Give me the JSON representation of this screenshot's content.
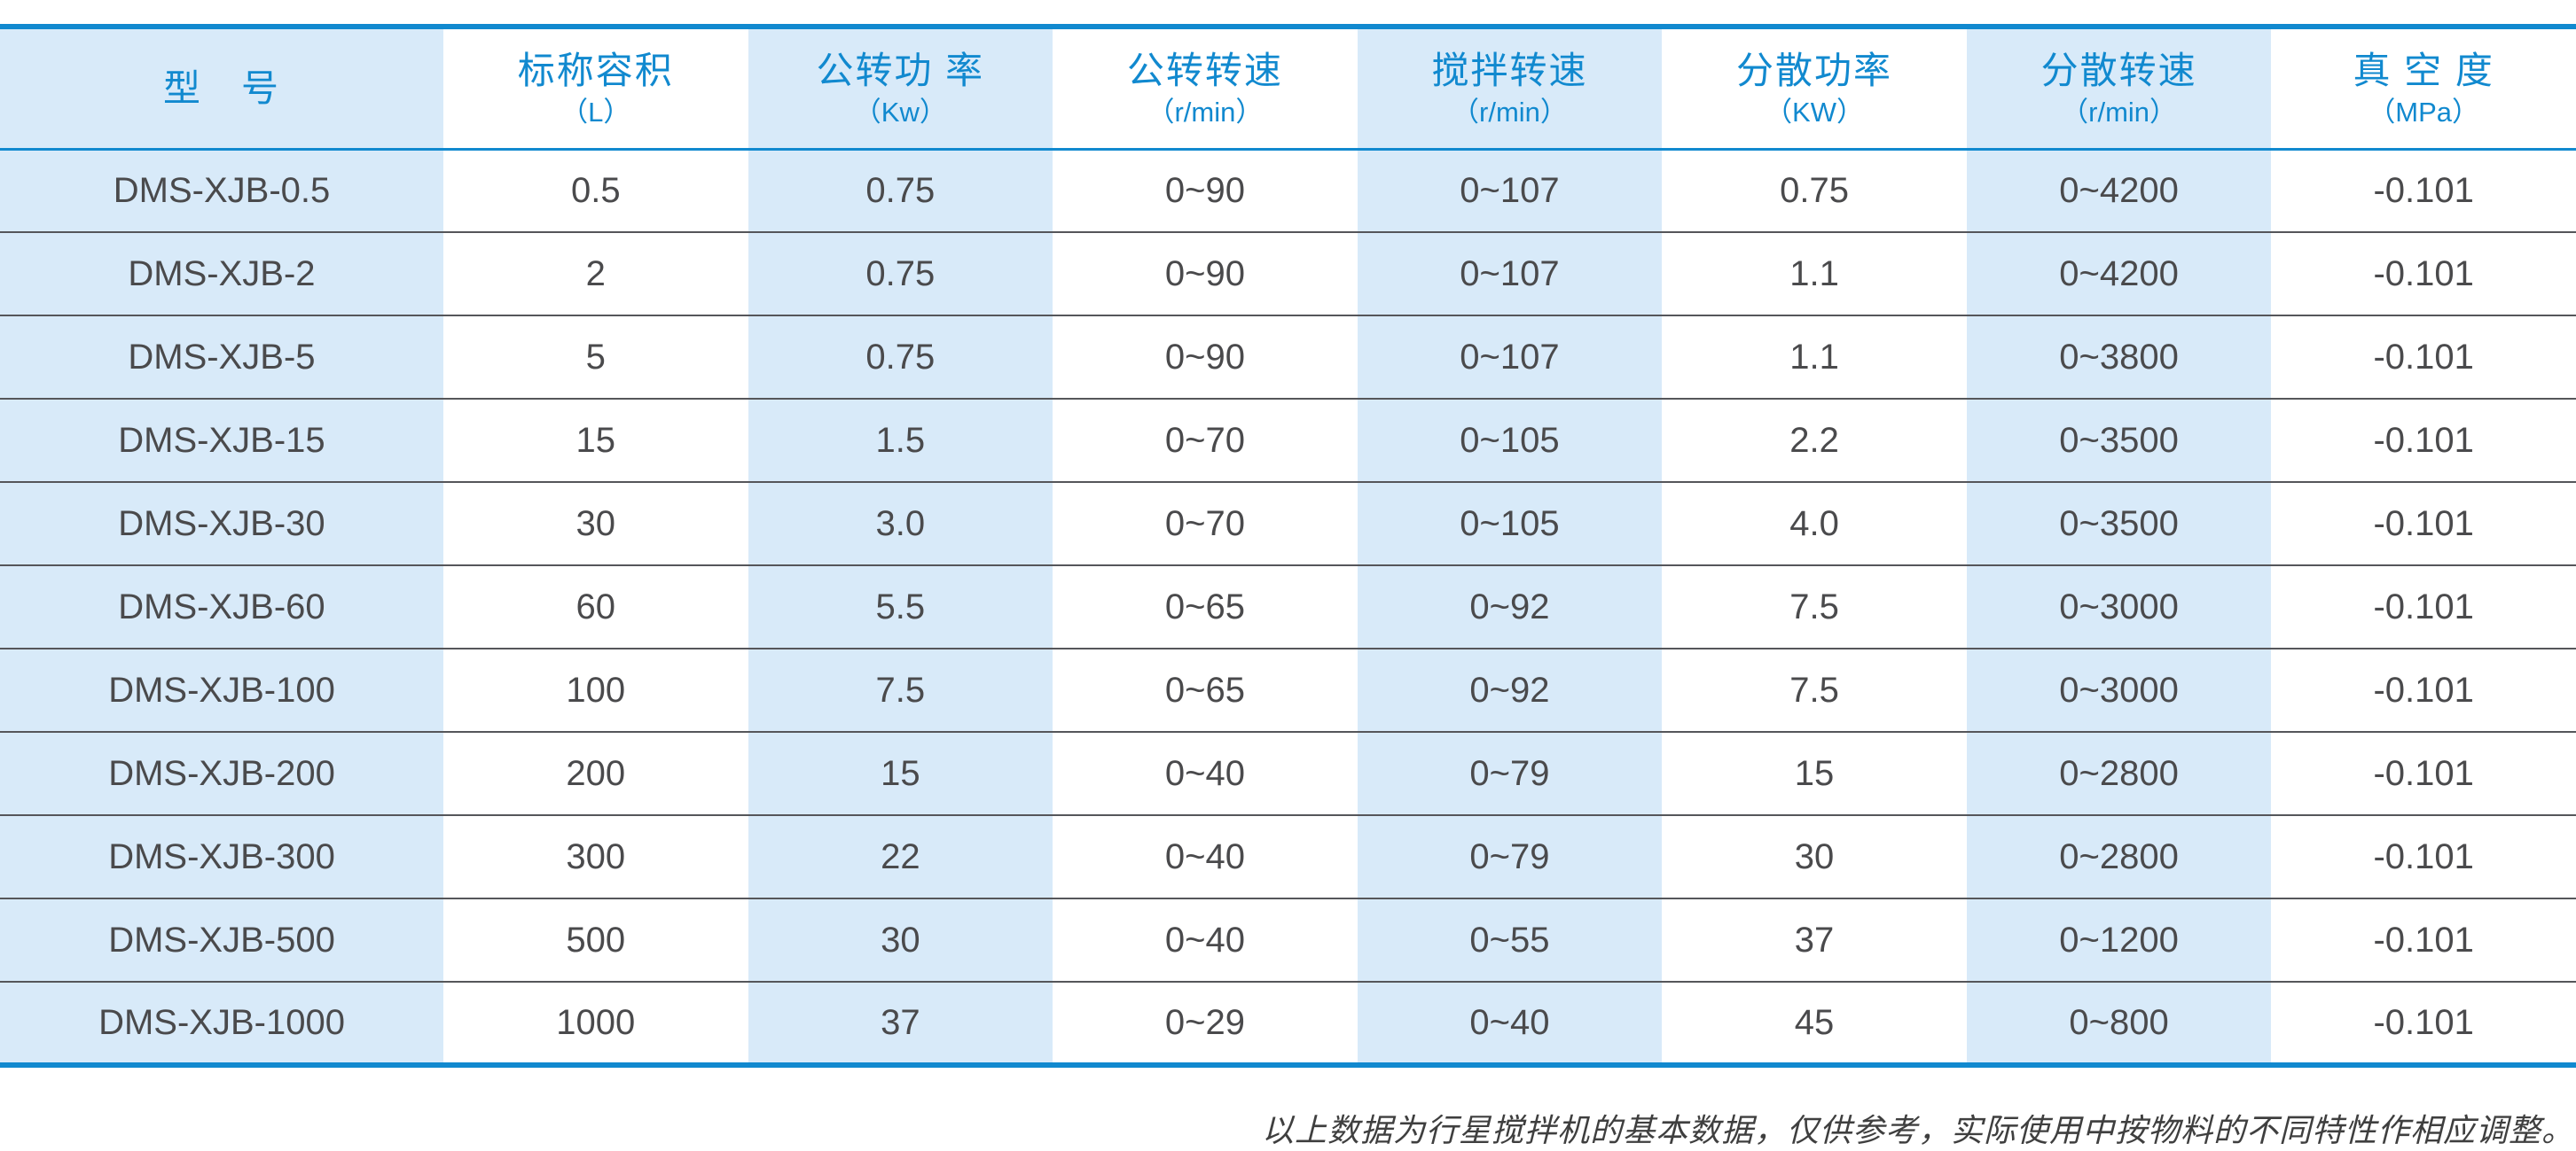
{
  "chart_data": {
    "type": "table",
    "columns": [
      {
        "title": "型　号",
        "unit": ""
      },
      {
        "title": "标称容积",
        "unit": "（L）"
      },
      {
        "title": "公转功 率",
        "unit": "（Kw）"
      },
      {
        "title": "公转转速",
        "unit": "（r/min）"
      },
      {
        "title": "搅拌转速",
        "unit": "（r/min）"
      },
      {
        "title": "分散功率",
        "unit": "（KW）"
      },
      {
        "title": "分散转速",
        "unit": "（r/min）"
      },
      {
        "title": "真 空 度",
        "unit": "（MPa）"
      }
    ],
    "rows": [
      [
        "DMS-XJB-0.5",
        "0.5",
        "0.75",
        "0~90",
        "0~107",
        "0.75",
        "0~4200",
        "-0.101"
      ],
      [
        "DMS-XJB-2",
        "2",
        "0.75",
        "0~90",
        "0~107",
        "1.1",
        "0~4200",
        "-0.101"
      ],
      [
        "DMS-XJB-5",
        "5",
        "0.75",
        "0~90",
        "0~107",
        "1.1",
        "0~3800",
        "-0.101"
      ],
      [
        "DMS-XJB-15",
        "15",
        "1.5",
        "0~70",
        "0~105",
        "2.2",
        "0~3500",
        "-0.101"
      ],
      [
        "DMS-XJB-30",
        "30",
        "3.0",
        "0~70",
        "0~105",
        "4.0",
        "0~3500",
        "-0.101"
      ],
      [
        "DMS-XJB-60",
        "60",
        "5.5",
        "0~65",
        "0~92",
        "7.5",
        "0~3000",
        "-0.101"
      ],
      [
        "DMS-XJB-100",
        "100",
        "7.5",
        "0~65",
        "0~92",
        "7.5",
        "0~3000",
        "-0.101"
      ],
      [
        "DMS-XJB-200",
        "200",
        "15",
        "0~40",
        "0~79",
        "15",
        "0~2800",
        "-0.101"
      ],
      [
        "DMS-XJB-300",
        "300",
        "22",
        "0~40",
        "0~79",
        "30",
        "0~2800",
        "-0.101"
      ],
      [
        "DMS-XJB-500",
        "500",
        "30",
        "0~40",
        "0~55",
        "37",
        "0~1200",
        "-0.101"
      ],
      [
        "DMS-XJB-1000",
        "1000",
        "37",
        "0~29",
        "0~40",
        "45",
        "0~800",
        "-0.101"
      ]
    ],
    "layout": {
      "grid": "horizontal-separators-only",
      "column_striping": "odd-columns-light-blue"
    }
  },
  "footer": {
    "note": "以上数据为行星搅拌机的基本数据，仅供参考，实际使用中按物料的不同特性作相应调整。"
  },
  "colors": {
    "accent": "#1189cf",
    "stripe": "#d8eaf9",
    "body-text": "#4a4a4c",
    "separator": "#55565a",
    "note-text": "#3f3f3f"
  }
}
